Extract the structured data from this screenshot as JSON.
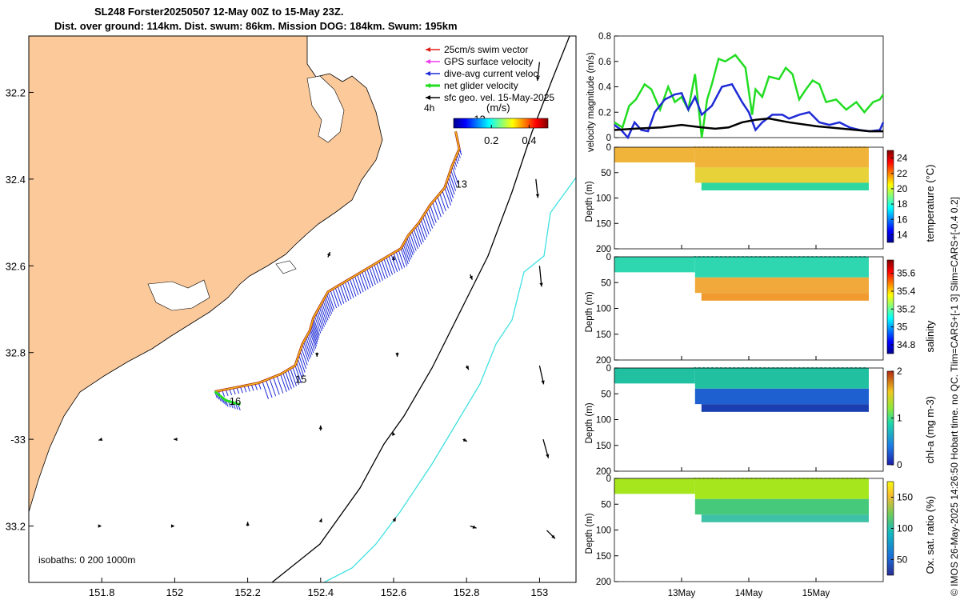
{
  "title_line1": "SL248 Forster20250507 12-May 00Z to 15-May 23Z.",
  "title_line2": "Dist. over ground: 114km. Dist. swum: 86km. Mission DOG: 184km. Swum: 195km",
  "credit": "© IMOS 26-May-2025 14:26:50 Hobart time. no QC. Tlim=CARS+[-1 3] Slim=CARS+[-0.4 0.2]",
  "chart_data": [
    {
      "type": "map",
      "name": "glider track map",
      "xlim": [
        151.6,
        153.1
      ],
      "ylim": [
        -33.33,
        -32.07
      ],
      "xticks": [
        151.8,
        152,
        152.2,
        152.4,
        152.6,
        152.8,
        153
      ],
      "xtick_labels": [
        "151.8",
        "152",
        "152.2",
        "152.4",
        "152.6",
        "152.8",
        "153"
      ],
      "yticks": [
        -32.2,
        -32.4,
        -32.6,
        -32.8,
        -33.0,
        -33.2
      ],
      "ytick_labels": [
        "32.2",
        "32.4",
        "32.6",
        "32.8",
        "-33",
        "33.2"
      ],
      "legend": [
        "25cm/s swim vector",
        "GPS surface velocity",
        "dive-avg current veloc.",
        "net glider velocity",
        "sfc geo. vel. 15-May-2025"
      ],
      "legend_colors": [
        "#e0201a",
        "#ee3cee",
        "#1f2bd6",
        "#22dd22",
        "#000000"
      ],
      "colorbar_label": "(m/s)",
      "colorbar_ticks": [
        "0.2",
        "0.4"
      ],
      "colorbar_range": [
        0,
        0.5
      ],
      "time_label": "4h",
      "day_labels": [
        {
          "text": "12",
          "lon": 152.82,
          "lat": -32.27
        },
        {
          "text": "13",
          "lon": 152.77,
          "lat": -32.42
        },
        {
          "text": "15",
          "lon": 152.33,
          "lat": -32.87
        },
        {
          "text": "16",
          "lon": 152.15,
          "lat": -32.92
        }
      ],
      "isobath_note": "isobaths: 0   200  1000m",
      "track": [
        [
          152.77,
          -32.29
        ],
        [
          152.78,
          -32.33
        ],
        [
          152.76,
          -32.37
        ],
        [
          152.74,
          -32.42
        ],
        [
          152.7,
          -32.46
        ],
        [
          152.67,
          -32.5
        ],
        [
          152.64,
          -32.53
        ],
        [
          152.62,
          -32.56
        ],
        [
          152.58,
          -32.58
        ],
        [
          152.54,
          -32.6
        ],
        [
          152.5,
          -32.62
        ],
        [
          152.46,
          -32.64
        ],
        [
          152.42,
          -32.66
        ],
        [
          152.4,
          -32.69
        ],
        [
          152.38,
          -32.72
        ],
        [
          152.37,
          -32.75
        ],
        [
          152.35,
          -32.78
        ],
        [
          152.33,
          -32.83
        ],
        [
          152.29,
          -32.85
        ],
        [
          152.23,
          -32.87
        ],
        [
          152.17,
          -32.88
        ],
        [
          152.11,
          -32.89
        ],
        [
          152.14,
          -32.91
        ],
        [
          152.18,
          -32.92
        ]
      ],
      "geo_vectors": [
        {
          "lon": 152.42,
          "lat": -32.58,
          "u": 0.02,
          "v": 0.05
        },
        {
          "lon": 152.6,
          "lat": -32.59,
          "u": 0.0,
          "v": 0.05
        },
        {
          "lon": 152.81,
          "lat": -32.62,
          "u": 0.02,
          "v": -0.05
        },
        {
          "lon": 153.0,
          "lat": -32.6,
          "u": 0.02,
          "v": -0.2
        },
        {
          "lon": 152.99,
          "lat": -32.4,
          "u": 0.02,
          "v": -0.18
        },
        {
          "lon": 153.0,
          "lat": -32.13,
          "u": -0.02,
          "v": -0.18
        },
        {
          "lon": 152.39,
          "lat": -32.8,
          "u": 0.0,
          "v": -0.04
        },
        {
          "lon": 152.61,
          "lat": -32.8,
          "u": 0.0,
          "v": -0.04
        },
        {
          "lon": 152.8,
          "lat": -32.83,
          "u": 0.02,
          "v": -0.04
        },
        {
          "lon": 153.0,
          "lat": -32.83,
          "u": 0.04,
          "v": -0.18
        },
        {
          "lon": 151.8,
          "lat": -33.0,
          "u": -0.03,
          "v": -0.01
        },
        {
          "lon": 152.0,
          "lat": -33.0,
          "u": -0.01,
          "v": 0.0
        },
        {
          "lon": 152.4,
          "lat": -32.98,
          "u": 0.0,
          "v": 0.05
        },
        {
          "lon": 152.6,
          "lat": -32.99,
          "u": -0.01,
          "v": 0.03
        },
        {
          "lon": 152.79,
          "lat": -33.0,
          "u": 0.04,
          "v": -0.02
        },
        {
          "lon": 153.01,
          "lat": -33.0,
          "u": 0.05,
          "v": -0.18
        },
        {
          "lon": 151.8,
          "lat": -33.2,
          "u": 0.0,
          "v": 0.0
        },
        {
          "lon": 152.0,
          "lat": -33.2,
          "u": 0.0,
          "v": 0.0
        },
        {
          "lon": 152.2,
          "lat": -33.2,
          "u": 0.0,
          "v": 0.04
        },
        {
          "lon": 152.4,
          "lat": -33.19,
          "u": 0.01,
          "v": 0.03
        },
        {
          "lon": 152.6,
          "lat": -33.19,
          "u": 0.02,
          "v": 0.04
        },
        {
          "lon": 152.81,
          "lat": -33.2,
          "u": 0.06,
          "v": -0.02
        },
        {
          "lon": 153.02,
          "lat": -33.21,
          "u": 0.08,
          "v": -0.08
        }
      ]
    },
    {
      "type": "line",
      "name": "velocity magnitude",
      "ylabel": "velocity magnitude (m/s)",
      "ylim": [
        0,
        0.8
      ],
      "yticks": [
        0,
        0.2,
        0.4,
        0.6,
        0.8
      ],
      "x_days": [
        12.0,
        16.0
      ],
      "series": [
        {
          "name": "net glider velocity",
          "color": "#22dd22",
          "t": [
            12.0,
            12.12,
            12.22,
            12.32,
            12.45,
            12.55,
            12.68,
            12.8,
            12.9,
            13.0,
            13.1,
            13.2,
            13.3,
            13.38,
            13.45,
            13.55,
            13.65,
            13.8,
            13.95,
            14.05,
            14.1,
            14.2,
            14.3,
            14.45,
            14.55,
            14.65,
            14.75,
            14.85,
            14.95,
            15.05,
            15.15,
            15.3,
            15.45,
            15.6,
            15.72,
            15.85,
            15.95,
            16.0
          ],
          "values": [
            0.12,
            0.08,
            0.25,
            0.3,
            0.42,
            0.38,
            0.22,
            0.4,
            0.28,
            0.32,
            0.22,
            0.5,
            0.0,
            0.3,
            0.42,
            0.62,
            0.6,
            0.65,
            0.55,
            0.18,
            0.38,
            0.32,
            0.48,
            0.46,
            0.55,
            0.5,
            0.3,
            0.38,
            0.45,
            0.42,
            0.28,
            0.3,
            0.22,
            0.28,
            0.2,
            0.28,
            0.3,
            0.34
          ]
        },
        {
          "name": "dive-avg current veloc.",
          "color": "#1f2bd6",
          "t": [
            12.0,
            12.1,
            12.2,
            12.3,
            12.4,
            12.5,
            12.6,
            12.75,
            12.9,
            13.0,
            13.1,
            13.2,
            13.3,
            13.45,
            13.6,
            13.75,
            13.9,
            14.0,
            14.1,
            14.2,
            14.35,
            14.5,
            14.6,
            14.75,
            14.9,
            15.05,
            15.2,
            15.35,
            15.5,
            15.65,
            15.8,
            15.95,
            16.0
          ],
          "values": [
            0.1,
            0.06,
            0.0,
            0.12,
            0.06,
            0.05,
            0.2,
            0.3,
            0.34,
            0.35,
            0.22,
            0.32,
            0.18,
            0.25,
            0.4,
            0.42,
            0.28,
            0.2,
            0.06,
            0.12,
            0.18,
            0.18,
            0.15,
            0.18,
            0.2,
            0.12,
            0.1,
            0.12,
            0.08,
            0.06,
            0.05,
            0.06,
            0.12
          ]
        },
        {
          "name": "sfc geo. vel.",
          "color": "#000000",
          "t": [
            12.0,
            12.3,
            12.7,
            13.0,
            13.3,
            13.5,
            13.7,
            13.9,
            14.1,
            14.3,
            14.6,
            15.0,
            15.4,
            15.8,
            16.0
          ],
          "values": [
            0.06,
            0.07,
            0.08,
            0.1,
            0.08,
            0.07,
            0.08,
            0.12,
            0.14,
            0.15,
            0.12,
            0.09,
            0.07,
            0.05,
            0.05
          ]
        }
      ]
    },
    {
      "type": "heatmap",
      "name": "temperature section",
      "ylabel": "Depth (m)",
      "ylim": [
        0,
        200
      ],
      "yticks": [
        0,
        50,
        100,
        150,
        200
      ],
      "colorbar_label": "temperature (°C)",
      "clim": [
        13,
        25
      ],
      "colorbar_ticks": [
        "14",
        "16",
        "18",
        "20",
        "22",
        "24"
      ]
    },
    {
      "type": "heatmap",
      "name": "salinity section",
      "ylabel": "Depth (m)",
      "ylim": [
        0,
        200
      ],
      "yticks": [
        0,
        50,
        100,
        150,
        200
      ],
      "colorbar_label": "salinity",
      "clim": [
        34.7,
        35.75
      ],
      "colorbar_ticks": [
        "34.8",
        "35",
        "35.2",
        "35.4",
        "35.6"
      ]
    },
    {
      "type": "heatmap",
      "name": "chlorophyll section",
      "ylabel": "Depth (m)",
      "ylim": [
        0,
        200
      ],
      "yticks": [
        0,
        50,
        100,
        150,
        200
      ],
      "colorbar_label": "chl-a (mg m-3)",
      "clim": [
        0,
        2
      ],
      "colorbar_ticks": [
        "0",
        "1",
        "2"
      ]
    },
    {
      "type": "heatmap",
      "name": "oxygen section",
      "ylabel": "Depth (m)",
      "ylim": [
        0,
        200
      ],
      "yticks": [
        0,
        50,
        100,
        150,
        200
      ],
      "colorbar_label": "Ox. sat. ratio (%)",
      "clim": [
        25,
        175
      ],
      "colorbar_ticks": [
        "50",
        "100",
        "150"
      ],
      "xtick_labels": [
        "13May",
        "14May",
        "15May"
      ]
    }
  ]
}
